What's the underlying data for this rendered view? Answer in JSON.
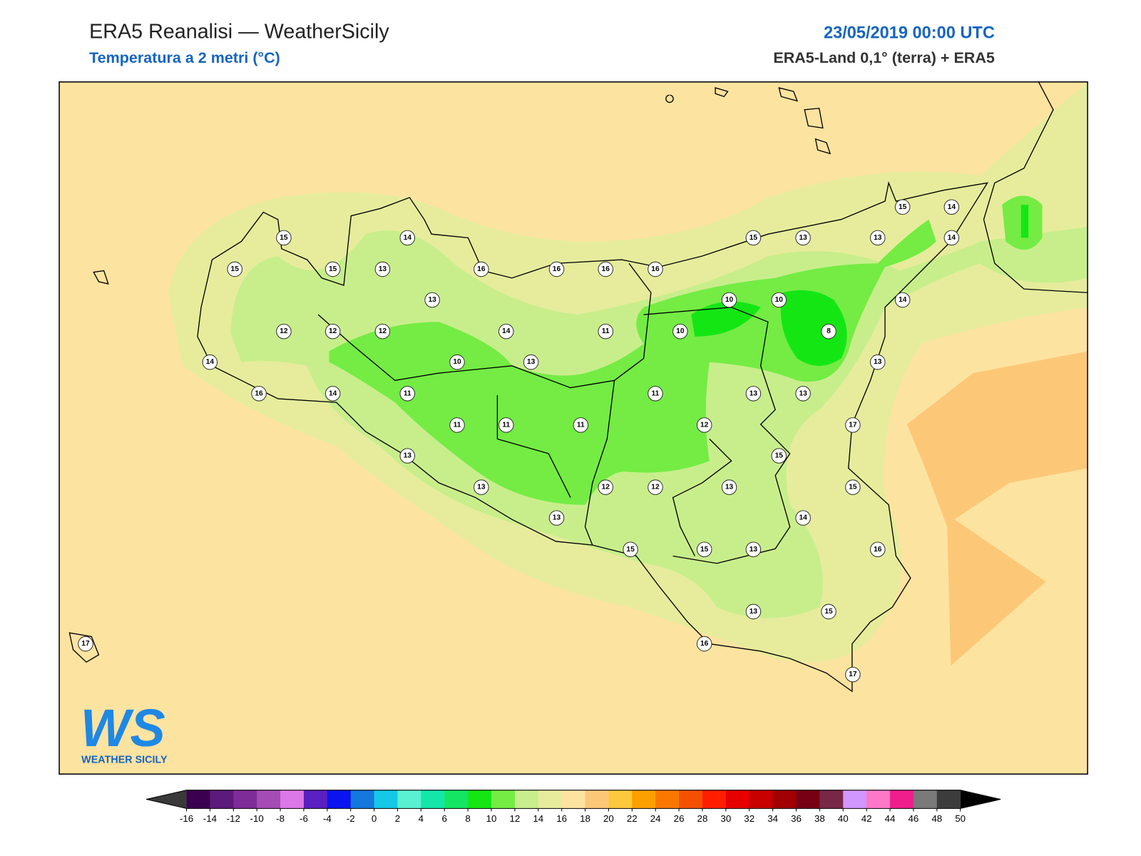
{
  "header": {
    "title": "ERA5 Reanalisi — WeatherSicily",
    "subtitle": "Temperatura a 2 metri (°C)",
    "date": "23/05/2019 00:00 UTC",
    "source": "ERA5-Land 0,1° (terra) + ERA5"
  },
  "logo": {
    "text": "WS",
    "subtitle": "WEATHER SICILY"
  },
  "stations": {
    "values": [
      15,
      15,
      14,
      15,
      13,
      16,
      16,
      16,
      16,
      15,
      13,
      13,
      15,
      14,
      14,
      13,
      10,
      10,
      14,
      12,
      12,
      12,
      14,
      11,
      10,
      8,
      14,
      10,
      13,
      13,
      16,
      14,
      11,
      11,
      13,
      13,
      11,
      11,
      11,
      12,
      17,
      13,
      15,
      13,
      12,
      12,
      13,
      15,
      13,
      14,
      15,
      15,
      13,
      16,
      13,
      15,
      17,
      16,
      17
    ]
  },
  "colorbar": {
    "ticks": [
      -16,
      -14,
      -12,
      -10,
      -8,
      -6,
      -4,
      -2,
      0,
      2,
      4,
      6,
      8,
      10,
      12,
      14,
      16,
      18,
      20,
      22,
      24,
      26,
      28,
      30,
      32,
      34,
      36,
      38,
      40,
      42,
      44,
      46,
      48,
      50
    ],
    "colors": [
      "#3c0050",
      "#5c1a7a",
      "#7e2c98",
      "#a44cb4",
      "#dc78e8",
      "#5a20c0",
      "#0a14f0",
      "#1478dc",
      "#14c8e6",
      "#5af0d2",
      "#14e6aa",
      "#14e664",
      "#14e614",
      "#74ec44",
      "#c8ee8c",
      "#e6ec9c",
      "#fde3a0",
      "#fcc878",
      "#fcc83c",
      "#fca000",
      "#fa7800",
      "#f55000",
      "#ff1e00",
      "#e60000",
      "#c80000",
      "#a00000",
      "#780014",
      "#782846",
      "#d296ff",
      "#ff78c8",
      "#f01e8c",
      "#7a7a7a",
      "#3c3c3c"
    ],
    "under_color": "#3a3a3a",
    "over_color": "#000000"
  }
}
